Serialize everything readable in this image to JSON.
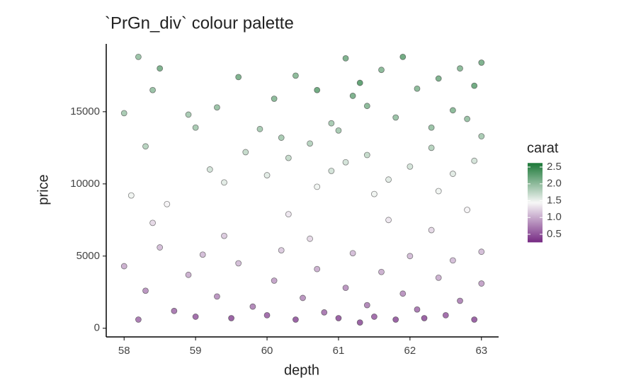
{
  "chart_data": {
    "type": "scatter",
    "title": "`PrGn_div` colour palette",
    "x_label": "depth",
    "y_label": "price",
    "color_label": "carat",
    "xlim": [
      57.75,
      63.24
    ],
    "ylim": [
      -600,
      19700
    ],
    "xticks": [
      58,
      59,
      60,
      61,
      62,
      63
    ],
    "yticks": [
      0,
      5000,
      10000,
      15000
    ],
    "color_scale": {
      "limits": [
        0.26,
        2.62
      ],
      "colors": [
        "#762a83",
        "#f7f7f7",
        "#1b7837"
      ]
    },
    "color_ticks": [
      0.5,
      {
        "value": 1,
        "label": "1.0"
      },
      1.5,
      {
        "value": 2,
        "label": "2.0"
      },
      2.5
    ],
    "x": [
      58.0,
      58.2,
      58.3,
      58.5,
      58.7,
      58.9,
      59.0,
      59.1,
      59.3,
      59.5,
      59.6,
      59.8,
      60.0,
      60.1,
      60.2,
      60.4,
      60.5,
      60.7,
      60.8,
      61.0,
      61.1,
      61.2,
      61.4,
      61.5,
      61.6,
      61.8,
      61.9,
      62.0,
      62.1,
      62.2,
      62.4,
      62.5,
      62.6,
      62.7,
      62.9,
      63.0,
      63.0,
      61.3,
      60.6,
      62.3,
      59.4,
      61.7,
      62.8,
      60.3,
      58.4,
      58.1,
      58.3,
      58.6,
      59.2,
      59.4,
      59.7,
      60.0,
      60.3,
      60.6,
      60.9,
      61.1,
      61.4,
      61.7,
      62.0,
      62.3,
      62.6,
      62.9,
      63.0,
      62.4,
      61.5,
      60.7,
      58.0,
      58.2,
      58.4,
      58.5,
      58.9,
      59.3,
      59.6,
      59.9,
      60.1,
      60.4,
      60.7,
      60.9,
      61.1,
      61.2,
      61.4,
      61.6,
      61.8,
      61.9,
      62.1,
      62.3,
      62.4,
      62.6,
      62.7,
      62.9,
      63.0,
      60.2,
      61.0,
      62.8,
      59.0,
      61.3
    ],
    "values": [
      4300,
      600,
      2600,
      5600,
      1200,
      3700,
      800,
      5100,
      2200,
      700,
      4500,
      1500,
      900,
      3300,
      5400,
      600,
      2100,
      4100,
      1100,
      700,
      2800,
      5200,
      1600,
      800,
      3900,
      600,
      2400,
      5000,
      1300,
      700,
      3500,
      900,
      4700,
      1900,
      600,
      3100,
      5300,
      400,
      6200,
      6800,
      6400,
      7500,
      8200,
      7900,
      7300,
      9200,
      12600,
      8600,
      11000,
      10100,
      12200,
      10600,
      11800,
      12800,
      10900,
      11500,
      12000,
      10300,
      11200,
      12500,
      10700,
      11600,
      13300,
      9500,
      9300,
      9800,
      14900,
      18800,
      16500,
      18000,
      14800,
      15300,
      17400,
      13800,
      15900,
      17500,
      16500,
      14200,
      18700,
      16100,
      15400,
      17900,
      14600,
      18800,
      16600,
      13900,
      17300,
      15100,
      18000,
      16800,
      18400,
      13200,
      13700,
      14500,
      13900,
      17000
    ],
    "color_values": [
      0.9,
      0.5,
      0.7,
      1.0,
      0.5,
      0.9,
      0.4,
      1.0,
      0.7,
      0.3,
      1.0,
      0.6,
      0.4,
      0.8,
      1.1,
      0.3,
      0.7,
      0.9,
      0.5,
      0.3,
      0.7,
      1.0,
      0.6,
      0.4,
      0.9,
      0.3,
      0.7,
      1.0,
      0.5,
      0.3,
      0.9,
      0.4,
      1.0,
      0.6,
      0.3,
      0.8,
      1.0,
      0.3,
      1.2,
      1.2,
      1.1,
      1.3,
      1.4,
      1.3,
      1.2,
      1.5,
      1.9,
      1.4,
      1.7,
      1.6,
      1.8,
      1.6,
      1.8,
      1.9,
      1.7,
      1.7,
      1.8,
      1.6,
      1.7,
      1.9,
      1.6,
      1.7,
      2.0,
      1.5,
      1.5,
      1.5,
      2.0,
      2.1,
      2.1,
      2.3,
      2.0,
      2.1,
      2.3,
      2.0,
      2.2,
      2.2,
      2.4,
      2.0,
      2.3,
      2.3,
      2.2,
      2.2,
      2.1,
      2.4,
      2.2,
      2.1,
      2.3,
      2.2,
      2.2,
      2.4,
      2.3,
      2.0,
      2.0,
      2.1,
      2.0,
      2.5
    ]
  }
}
